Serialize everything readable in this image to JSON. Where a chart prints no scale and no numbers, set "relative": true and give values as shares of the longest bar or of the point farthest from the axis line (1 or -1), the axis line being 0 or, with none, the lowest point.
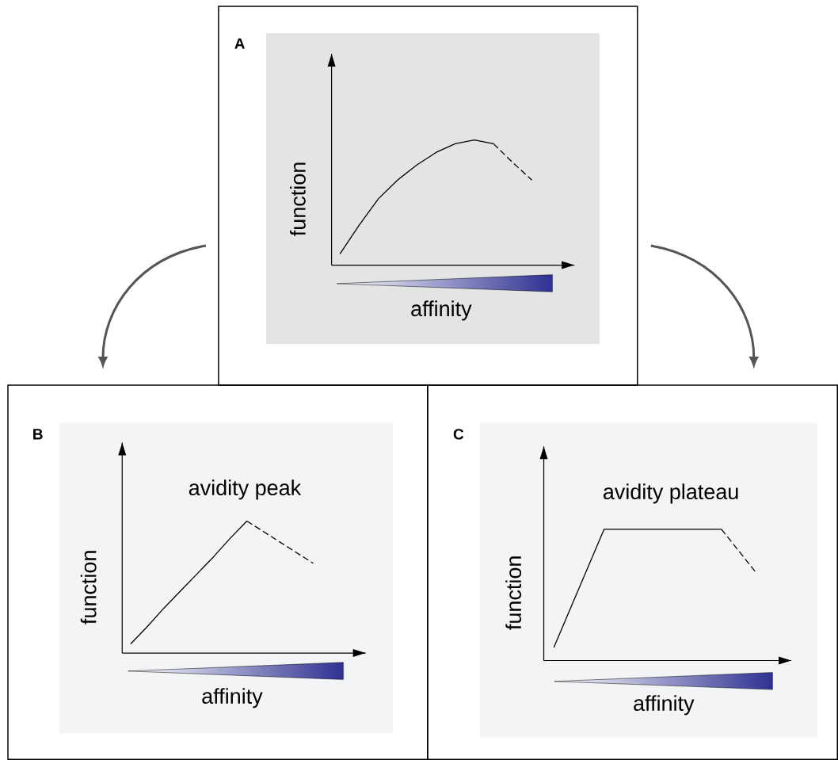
{
  "chart_data": [
    {
      "type": "line",
      "title": "A",
      "xlabel": "affinity",
      "ylabel": "function",
      "relative": true,
      "categories": [
        null,
        null,
        null,
        null,
        null,
        null,
        null,
        null,
        null,
        null,
        null
      ],
      "series": [
        {
          "color": "#000000",
          "line_style": "solid",
          "values": [
            0.09,
            0.32,
            0.53,
            0.68,
            0.8,
            0.9,
            0.97,
            1,
            0.97,
            null,
            null
          ]
        },
        {
          "color": "#000000",
          "line_style": "dashed",
          "values": [
            null,
            null,
            null,
            null,
            null,
            null,
            null,
            null,
            0.97,
            0.82,
            0.68
          ]
        }
      ]
    },
    {
      "type": "line",
      "title": "B",
      "xlabel": "affinity",
      "ylabel": "function",
      "relative": true,
      "annotations": [
        "avidity peak"
      ],
      "categories": [
        null,
        null,
        null,
        null,
        null,
        null,
        null,
        null,
        null,
        null,
        null,
        null
      ],
      "series": [
        {
          "color": "#000000",
          "line_style": "solid",
          "values": [
            0.07,
            0.2,
            0.34,
            0.47,
            0.6,
            0.73,
            0.87,
            1,
            null,
            null,
            null,
            null
          ]
        },
        {
          "color": "#000000",
          "line_style": "dashed",
          "values": [
            null,
            null,
            null,
            null,
            null,
            null,
            null,
            1,
            0.92,
            0.84,
            0.76,
            0.68
          ]
        }
      ]
    },
    {
      "type": "line",
      "title": "C",
      "xlabel": "affinity",
      "ylabel": "function",
      "relative": true,
      "annotations": [
        "avidity plateau"
      ],
      "categories": [
        null,
        null,
        null,
        null,
        null,
        null,
        null,
        null,
        null,
        null,
        null,
        null,
        null
      ],
      "series": [
        {
          "color": "#000000",
          "line_style": "solid",
          "values": [
            0.1,
            0.4,
            0.7,
            1,
            1,
            1,
            1,
            1,
            1,
            1,
            1,
            null,
            null
          ]
        },
        {
          "color": "#000000",
          "line_style": "dashed",
          "values": [
            null,
            null,
            null,
            null,
            null,
            null,
            null,
            null,
            null,
            null,
            1,
            0.84,
            0.68
          ]
        }
      ]
    }
  ]
}
